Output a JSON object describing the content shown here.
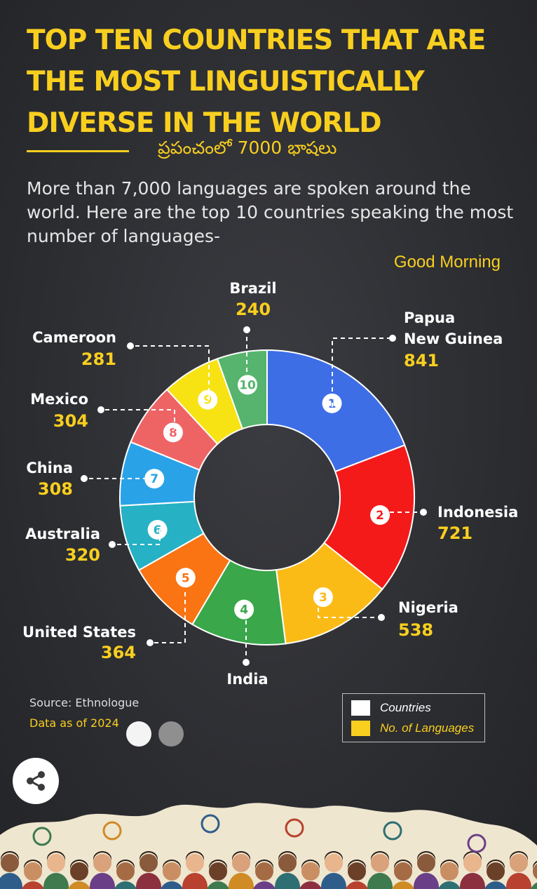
{
  "header": {
    "title": "TOP TEN COUNTRIES THAT ARE THE MOST LINGUISTICALLY DIVERSE IN THE WORLD",
    "telugu_caption": "ప్రపంచంలో 7000 భాషలు",
    "subtitle": "More than 7,000 languages are spoken around the world. Here are the top 10 countries speaking the most number of languages-",
    "greeting": "Good Morning"
  },
  "chart_data": {
    "type": "pie",
    "title": "TOP TEN COUNTRIES THAT ARE THE MOST LINGUISTICALLY DIVERSE IN THE WORLD",
    "categories": [
      "Papua New Guinea",
      "Indonesia",
      "Nigeria",
      "India",
      "United States",
      "Australia",
      "China",
      "Mexico",
      "Cameroon",
      "Brazil"
    ],
    "values": [
      841,
      721,
      538,
      459,
      364,
      320,
      308,
      304,
      281,
      240
    ],
    "ranks": [
      "1",
      "2",
      "3",
      "4",
      "5",
      "6",
      "7",
      "8",
      "9",
      "10"
    ],
    "colors": [
      "#3e6ee6",
      "#f41a1a",
      "#fbbb16",
      "#39a74a",
      "#fa7414",
      "#26b1c4",
      "#2aa2e8",
      "#ee6465",
      "#f7e214",
      "#57b46e"
    ],
    "donut": true,
    "legend": [
      {
        "label": "Countries",
        "color": "#ffffff"
      },
      {
        "label": "No. of Languages",
        "color": "#f9cf1f"
      }
    ],
    "legend_position": "bottom-right"
  },
  "footer": {
    "source": "Source: Ethnologue",
    "data_as_of": "Data as of 2024"
  },
  "controls": {
    "share_icon": "share-icon",
    "pagination_dots": 2
  }
}
